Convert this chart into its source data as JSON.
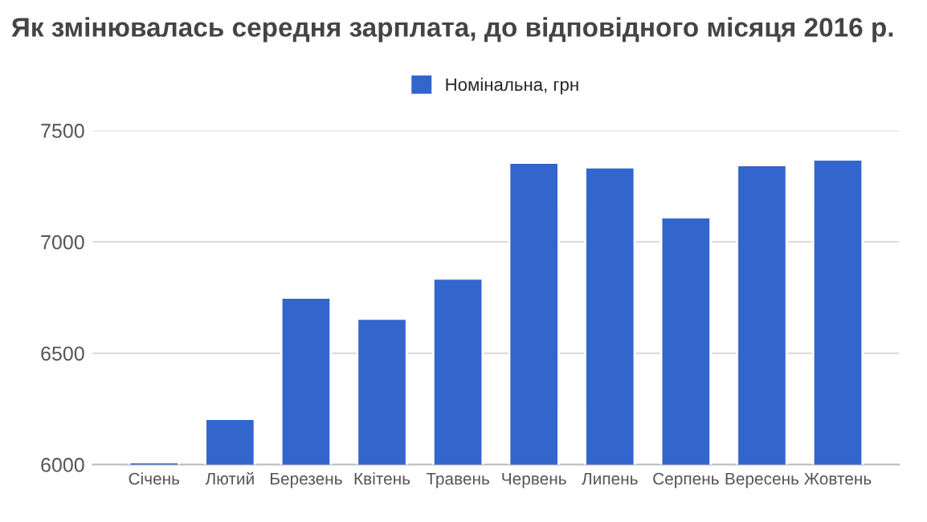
{
  "chart_data": {
    "type": "bar",
    "title": "Як змінювалась середня зарплата, до відповідного місяця 2016 р.",
    "categories": [
      "Січень",
      "Лютий",
      "Березень",
      "Квітень",
      "Травень",
      "Червень",
      "Липень",
      "Серпень",
      "Вересень",
      "Жовтень"
    ],
    "series": [
      {
        "name": "Номінальна, грн",
        "color": "#3366cc",
        "values": [
          6010,
          6205,
          6750,
          6655,
          6835,
          7355,
          7335,
          7110,
          7345,
          7370
        ]
      }
    ],
    "ylim": [
      6000,
      7500
    ],
    "yticks": [
      6000,
      6500,
      7000,
      7500
    ],
    "grid": "y",
    "legend": "top"
  }
}
